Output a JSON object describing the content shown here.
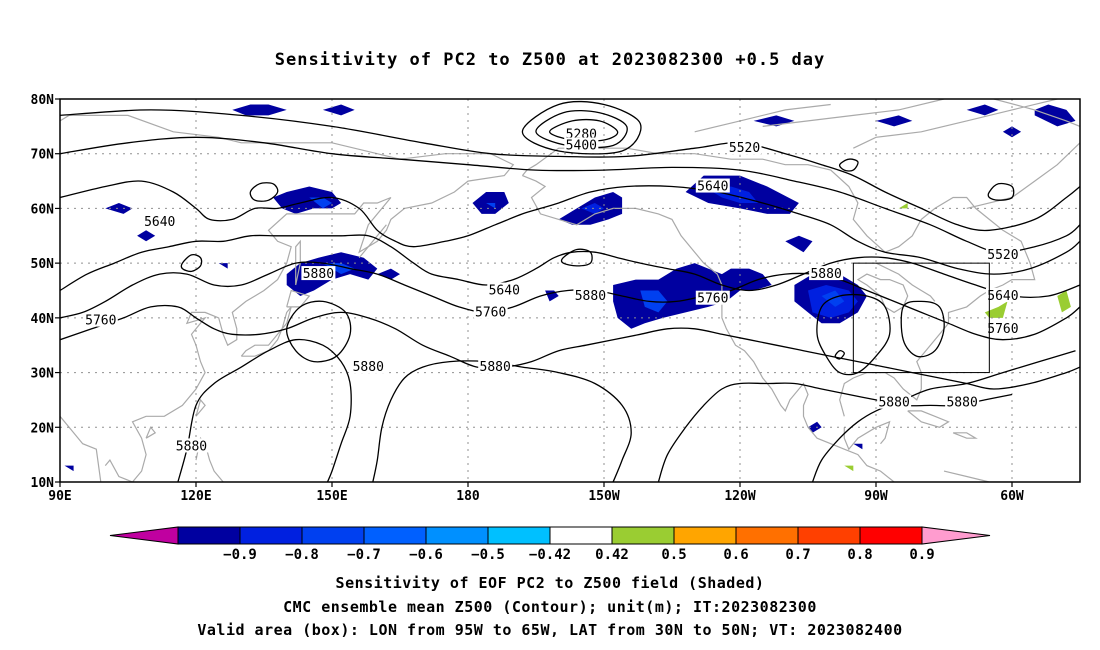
{
  "title": "Sensitivity of PC2 to Z500 at 2023082300 +0.5 day",
  "captions": [
    "Sensitivity of EOF PC2 to Z500 field (Shaded)",
    "CMC ensemble mean Z500 (Contour); unit(m); IT:2023082300",
    "Valid area (box): LON from 95W to 65W, LAT from 30N to 50N; VT: 2023082400"
  ],
  "map": {
    "lat_ticks": [
      "80N",
      "70N",
      "60N",
      "50N",
      "40N",
      "30N",
      "20N",
      "10N"
    ],
    "lon_ticks": [
      "90E",
      "120E",
      "150E",
      "180",
      "150W",
      "120W",
      "90W",
      "60W"
    ],
    "lat_range": [
      10,
      80
    ],
    "lon_range_east": [
      90,
      315
    ],
    "grid": "dotted",
    "valid_box": {
      "lon": [
        -95,
        -65
      ],
      "lat": [
        30,
        50
      ]
    }
  },
  "contour_labels": [
    {
      "text": "5280",
      "lon": 205,
      "lat": 73.5
    },
    {
      "text": "5400",
      "lon": 205,
      "lat": 71.5
    },
    {
      "text": "5520",
      "lon": 241,
      "lat": 71
    },
    {
      "text": "5640",
      "lon": 112,
      "lat": 57.5
    },
    {
      "text": "5640",
      "lon": 234,
      "lat": 64
    },
    {
      "text": "5640",
      "lon": 188,
      "lat": 45
    },
    {
      "text": "5640",
      "lon": 298,
      "lat": 44
    },
    {
      "text": "5520",
      "lon": 298,
      "lat": 51.5
    },
    {
      "text": "5880",
      "lon": 147,
      "lat": 48
    },
    {
      "text": "5880",
      "lon": 207,
      "lat": 44
    },
    {
      "text": "5880",
      "lon": 259,
      "lat": 48
    },
    {
      "text": "5880",
      "lon": 158,
      "lat": 31
    },
    {
      "text": "5880",
      "lon": 186,
      "lat": 31
    },
    {
      "text": "5880",
      "lon": 119,
      "lat": 16.5
    },
    {
      "text": "5880",
      "lon": 274,
      "lat": 24.5
    },
    {
      "text": "5880",
      "lon": 289,
      "lat": 24.5
    },
    {
      "text": "5760",
      "lon": 99,
      "lat": 39.5
    },
    {
      "text": "5760",
      "lon": 185,
      "lat": 41
    },
    {
      "text": "5760",
      "lon": 234,
      "lat": 43.5
    },
    {
      "text": "5760",
      "lon": 298,
      "lat": 38
    }
  ],
  "colorbar": {
    "labels": [
      "−0.9",
      "−0.8",
      "−0.7",
      "−0.6",
      "−0.5",
      "−0.42",
      "0.42",
      "0.5",
      "0.6",
      "0.7",
      "0.8",
      "0.9"
    ],
    "colors": [
      "#0000a0",
      "#0020e0",
      "#0040f0",
      "#0060ff",
      "#0090ff",
      "#00c0ff",
      "#ffffff",
      "#9acd32",
      "#ffa500",
      "#ff7000",
      "#ff4000",
      "#ff0000"
    ],
    "low_end_color": "#c000a0",
    "high_end_color": "#ff9ccf"
  },
  "colors": {
    "contour": "#000000",
    "coast": "#aaaaaa",
    "grid": "#909090"
  }
}
